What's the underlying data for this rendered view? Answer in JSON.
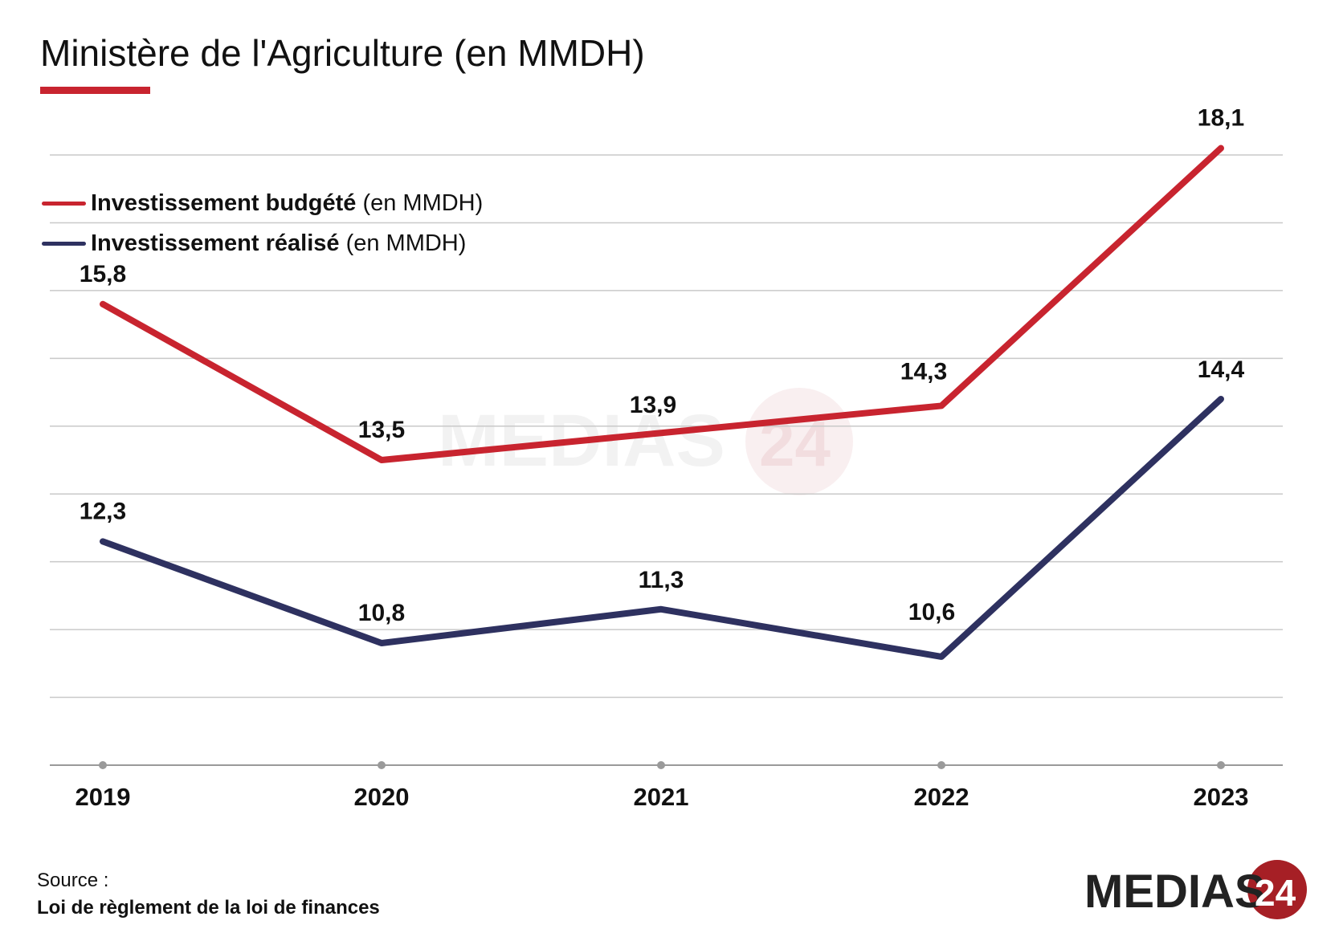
{
  "title": {
    "main": "Ministère de l'Agriculture",
    "unit": "(en MMDH)",
    "accent_color": "#c8242f"
  },
  "legend": [
    {
      "name": "Investissement budgété",
      "unit": "(en MMDH)",
      "color": "#c8242f"
    },
    {
      "name": "Investissement réalisé",
      "unit": "(en MMDH)",
      "color": "#2e3160"
    }
  ],
  "source": {
    "label": "Source :",
    "text": "Loi de règlement de la loi de finances"
  },
  "brand": {
    "name": "MEDIAS",
    "number": "24",
    "watermark_name": "MEDIAS",
    "watermark_number": "24",
    "text_color": "#222222",
    "number_color": "#a61f25"
  },
  "chart_data": {
    "type": "line",
    "x": [
      "2019",
      "2020",
      "2021",
      "2022",
      "2023"
    ],
    "series": [
      {
        "name": "Investissement budgété",
        "values": [
          15.8,
          13.5,
          13.9,
          14.3,
          18.1
        ],
        "labels": [
          "15,8",
          "13,5",
          "13,9",
          "14,3",
          "18,1"
        ],
        "color": "#c8242f"
      },
      {
        "name": "Investissement réalisé",
        "values": [
          12.3,
          10.8,
          11.3,
          10.6,
          14.4
        ],
        "labels": [
          "12,3",
          "10,8",
          "11,3",
          "10,6",
          "14,4"
        ],
        "color": "#2e3160"
      }
    ],
    "ylim": [
      9,
      18
    ],
    "grid": true,
    "legend_position": "top-left"
  }
}
